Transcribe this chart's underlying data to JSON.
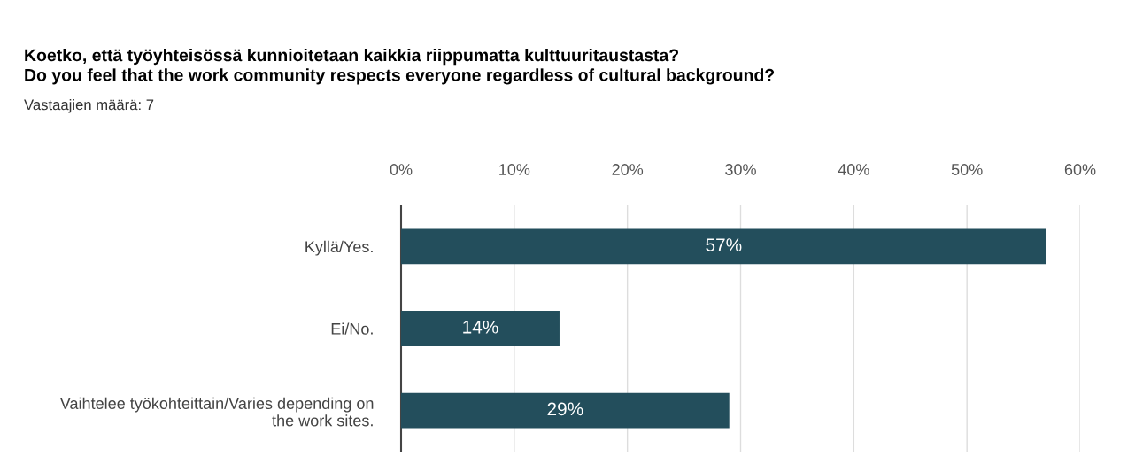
{
  "chart_data": {
    "type": "bar",
    "orientation": "horizontal",
    "title": "Koetko, että työyhteisössä kunnioitetaan kaikkia riippumatta kulttuuritaustasta?\nDo you feel that the work community respects everyone regardless of cultural background?",
    "subtitle": "Vastaajien määrä: 7",
    "categories": [
      "Kyllä/Yes.",
      "Ei/No.",
      "Vaihtelee työkohteittain/Varies depending on\nthe work sites."
    ],
    "values": [
      57,
      14,
      29
    ],
    "value_labels": [
      "57%",
      "14%",
      "29%"
    ],
    "color": "#234e5c",
    "xlim": [
      0,
      60
    ],
    "xticks": [
      {
        "value": 0,
        "label": "0%"
      },
      {
        "value": 10,
        "label": "10%"
      },
      {
        "value": 20,
        "label": "20%"
      },
      {
        "value": 30,
        "label": "30%"
      },
      {
        "value": 40,
        "label": "40%"
      },
      {
        "value": 50,
        "label": "50%"
      },
      {
        "value": 60,
        "label": "60%"
      }
    ],
    "grid": "x",
    "legend": false
  }
}
